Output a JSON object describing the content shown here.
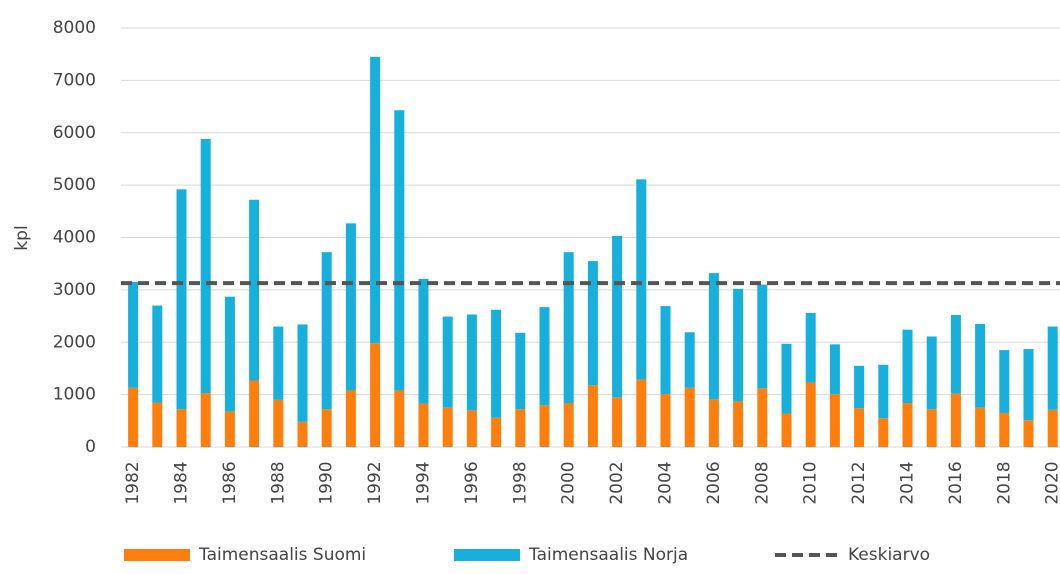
{
  "chart_data": {
    "type": "stacked_bar",
    "y_label": "kpl",
    "categories": [
      "1982",
      null,
      "1984",
      null,
      "1986",
      null,
      "1988",
      null,
      "1990",
      null,
      "1992",
      null,
      "1994",
      null,
      "1996",
      null,
      "1998",
      null,
      "2000",
      null,
      "2002",
      null,
      "2004",
      null,
      "2006",
      null,
      "2008",
      null,
      "2010",
      null,
      "2012",
      null,
      "2014",
      null,
      "2016",
      null,
      "2018",
      null,
      "2020"
    ],
    "series": [
      {
        "name": "Taimensaalis Suomi",
        "color": "#ff7f0e",
        "values": [
          1130,
          850,
          720,
          1030,
          680,
          1270,
          900,
          480,
          720,
          1080,
          1980,
          1080,
          830,
          750,
          700,
          560,
          720,
          800,
          840,
          1180,
          950,
          1290,
          1010,
          1130,
          910,
          870,
          1120,
          640,
          1230,
          1010,
          740,
          550,
          840,
          720,
          1020,
          750,
          650,
          510,
          710
        ]
      },
      {
        "name": "Taimensaalis Norja",
        "color": "#17b0dc",
        "values": [
          2020,
          1850,
          4200,
          4850,
          2190,
          3450,
          1400,
          1860,
          3000,
          3190,
          5470,
          5350,
          2380,
          1740,
          1830,
          2060,
          1460,
          1870,
          2880,
          2370,
          3080,
          3820,
          1680,
          1060,
          2410,
          2150,
          1980,
          1330,
          1330,
          950,
          810,
          1020,
          1400,
          1390,
          1500,
          1600,
          1200,
          1360,
          1590
        ]
      }
    ],
    "mean": {
      "name": "Keskiarvo",
      "value": 3130,
      "color": "#555555"
    },
    "ylim": [
      0,
      8000
    ],
    "yticks": [
      0,
      1000,
      2000,
      3000,
      4000,
      5000,
      6000,
      7000,
      8000
    ],
    "grid": true
  }
}
